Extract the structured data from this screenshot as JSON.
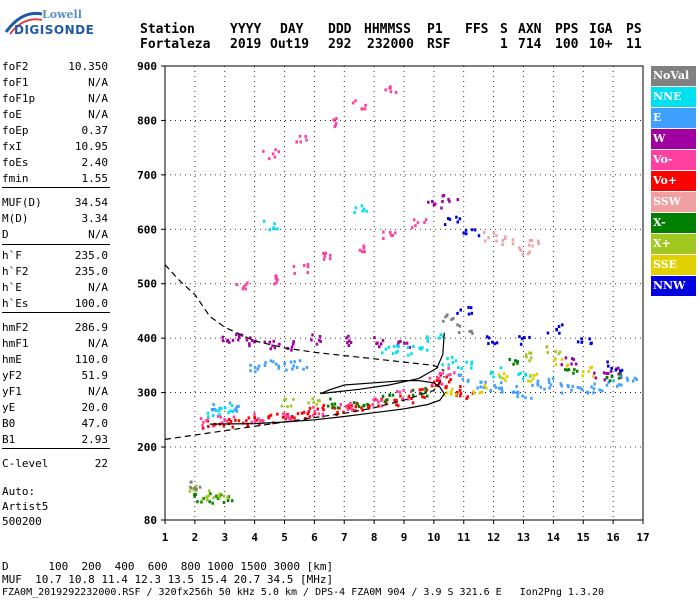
{
  "logo": {
    "top": "Lowell",
    "bottom": "DIGISONDE"
  },
  "header": {
    "labels": [
      "Station",
      "YYYY",
      "DAY",
      "DDD",
      "HHMMSS",
      "P1",
      "FFS",
      "S",
      "AXN",
      "PPS",
      "IGA",
      "PS"
    ],
    "values": [
      "Fortaleza",
      "2019",
      "Out19",
      "292",
      "232000",
      "RSF",
      "1",
      "714",
      "100",
      "10+",
      "11"
    ]
  },
  "params": [
    {
      "k": "foF2",
      "v": "10.350"
    },
    {
      "k": "foF1",
      "v": "N/A"
    },
    {
      "k": "foF1p",
      "v": "N/A"
    },
    {
      "k": "foE",
      "v": "N/A"
    },
    {
      "k": "foEp",
      "v": "0.37"
    },
    {
      "k": "fxI",
      "v": "10.95"
    },
    {
      "k": "foEs",
      "v": "2.40"
    },
    {
      "k": "fmin",
      "v": "1.55"
    },
    {
      "k": "MUF(D)",
      "v": "34.54"
    },
    {
      "k": "M(D)",
      "v": "3.34"
    },
    {
      "k": "D",
      "v": "N/A"
    },
    {
      "k": "h`F",
      "v": "235.0"
    },
    {
      "k": "h`F2",
      "v": "235.0"
    },
    {
      "k": "h`E",
      "v": "N/A"
    },
    {
      "k": "h`Es",
      "v": "100.0"
    },
    {
      "k": "hmF2",
      "v": "286.9"
    },
    {
      "k": "hmF1",
      "v": "N/A"
    },
    {
      "k": "hmE",
      "v": "110.0"
    },
    {
      "k": "yF2",
      "v": "51.9"
    },
    {
      "k": "yF1",
      "v": "N/A"
    },
    {
      "k": "yE",
      "v": "20.0"
    },
    {
      "k": "B0",
      "v": "47.0"
    },
    {
      "k": "B1",
      "v": "2.93"
    },
    {
      "k": "C-level",
      "v": "22"
    }
  ],
  "auto": {
    "line1": "Auto:",
    "line2": "Artist5",
    "line3": "500200"
  },
  "legend": [
    {
      "label": "NoVal",
      "color": "#808080"
    },
    {
      "label": "NNE",
      "color": "#00e0f0"
    },
    {
      "label": "E",
      "color": "#40a0ff"
    },
    {
      "label": "W",
      "color": "#a000a0"
    },
    {
      "label": "Vo-",
      "color": "#ff40a0"
    },
    {
      "label": "Vo+",
      "color": "#ff0000"
    },
    {
      "label": "SSW",
      "color": "#f0a0a0"
    },
    {
      "label": "X-",
      "color": "#008000"
    },
    {
      "label": "X+",
      "color": "#a0c820"
    },
    {
      "label": "SSE",
      "color": "#e0d000"
    },
    {
      "label": "NNW",
      "color": "#0000e0"
    }
  ],
  "footer": {
    "line1": "D      100  200  400  600  800 1000 1500 3000 [km]",
    "line2": "MUF  10.7 10.8 11.4 12.3 13.5 15.4 20.7 34.5 [MHz]",
    "line3": "FZA0M_2019292232000.RSF / 320fx256h 50 kHz 5.0 km / DPS-4 FZA0M 904 / 3.9 S 321.6 E   Ion2Png 1.3.20"
  },
  "chart_data": {
    "type": "scatter",
    "xlabel": "",
    "ylabel": "",
    "xlim": [
      1,
      17
    ],
    "ylim": [
      80,
      900
    ],
    "xticks": [
      1,
      2,
      3,
      4,
      5,
      6,
      7,
      8,
      9,
      10,
      11,
      12,
      13,
      14,
      15,
      16,
      17
    ],
    "yticks": [
      80,
      200,
      300,
      400,
      500,
      600,
      700,
      800,
      900
    ],
    "series": [
      {
        "name": "Vo+",
        "color": "#ff0000",
        "points": [
          [
            2.5,
            245
          ],
          [
            3.0,
            245
          ],
          [
            3.5,
            248
          ],
          [
            4.0,
            252
          ],
          [
            4.5,
            255
          ],
          [
            5.0,
            258
          ],
          [
            5.5,
            262
          ],
          [
            6.0,
            266
          ],
          [
            6.5,
            270
          ],
          [
            7.0,
            274
          ],
          [
            7.5,
            278
          ],
          [
            8.0,
            282
          ],
          [
            8.5,
            287
          ],
          [
            9.0,
            293
          ],
          [
            9.5,
            302
          ],
          [
            10.0,
            316
          ],
          [
            10.3,
            330
          ],
          [
            10.6,
            305
          ],
          [
            11.0,
            300
          ]
        ]
      },
      {
        "name": "Vo-",
        "color": "#ff40a0",
        "points": [
          [
            2.4,
            250
          ],
          [
            3.0,
            250
          ],
          [
            4.0,
            256
          ],
          [
            5.0,
            262
          ],
          [
            6.0,
            268
          ],
          [
            7.0,
            276
          ],
          [
            8.0,
            284
          ],
          [
            9.0,
            298
          ],
          [
            10.0,
            322
          ],
          [
            10.4,
            340
          ],
          [
            3.5,
            496
          ],
          [
            4.5,
            510
          ],
          [
            5.5,
            530
          ],
          [
            6.5,
            550
          ],
          [
            7.5,
            570
          ],
          [
            8.5,
            590
          ],
          [
            9.5,
            612
          ],
          [
            4.5,
            740
          ],
          [
            5.5,
            770
          ],
          [
            6.5,
            800
          ],
          [
            7.5,
            830
          ],
          [
            8.5,
            860
          ]
        ]
      },
      {
        "name": "W",
        "color": "#a000a0",
        "points": [
          [
            3.0,
            400
          ],
          [
            3.5,
            402
          ],
          [
            4.0,
            395
          ],
          [
            4.5,
            390
          ],
          [
            5.0,
            388
          ],
          [
            6.0,
            400
          ],
          [
            7.0,
            398
          ],
          [
            8.0,
            395
          ],
          [
            9.0,
            392
          ],
          [
            10.0,
            650
          ],
          [
            10.5,
            660
          ],
          [
            14.5,
            360
          ],
          [
            15.5,
            330
          ],
          [
            16.0,
            340
          ]
        ]
      },
      {
        "name": "E",
        "color": "#40a0ff",
        "points": [
          [
            4.0,
            350
          ],
          [
            4.5,
            352
          ],
          [
            5.0,
            350
          ],
          [
            5.5,
            352
          ],
          [
            11.0,
            330
          ],
          [
            11.5,
            320
          ],
          [
            12.0,
            315
          ],
          [
            12.5,
            305
          ],
          [
            13.0,
            300
          ],
          [
            13.5,
            315
          ],
          [
            14.0,
            320
          ],
          [
            14.5,
            310
          ],
          [
            15.0,
            305
          ],
          [
            15.5,
            310
          ],
          [
            16.0,
            320
          ],
          [
            16.5,
            330
          ],
          [
            2.8,
            272
          ],
          [
            3.2,
            275
          ]
        ]
      },
      {
        "name": "NNE",
        "color": "#00e0f0",
        "points": [
          [
            9.0,
            380
          ],
          [
            9.5,
            385
          ],
          [
            10.0,
            400
          ],
          [
            10.5,
            360
          ],
          [
            11.0,
            350
          ],
          [
            12.0,
            340
          ],
          [
            13.0,
            330
          ],
          [
            3.0,
            272
          ],
          [
            2.6,
            265
          ],
          [
            4.5,
            610
          ],
          [
            7.5,
            640
          ],
          [
            8.5,
            380
          ]
        ]
      },
      {
        "name": "X-",
        "color": "#008000",
        "points": [
          [
            2.2,
            120
          ],
          [
            2.6,
            118
          ],
          [
            3.0,
            118
          ],
          [
            6.5,
            282
          ],
          [
            7.5,
            285
          ],
          [
            8.5,
            290
          ],
          [
            9.5,
            305
          ],
          [
            12.5,
            355
          ],
          [
            14.5,
            345
          ],
          [
            16.0,
            330
          ]
        ]
      },
      {
        "name": "X+",
        "color": "#a0c820",
        "points": [
          [
            2.0,
            135
          ],
          [
            2.4,
            122
          ],
          [
            2.8,
            118
          ],
          [
            5.0,
            285
          ],
          [
            6.0,
            290
          ],
          [
            13.0,
            370
          ],
          [
            14.0,
            380
          ]
        ]
      },
      {
        "name": "SSE",
        "color": "#e0d000",
        "points": [
          [
            10.5,
            300
          ],
          [
            11.5,
            310
          ],
          [
            12.2,
            330
          ],
          [
            13.2,
            330
          ],
          [
            14.2,
            360
          ],
          [
            15.2,
            340
          ]
        ]
      },
      {
        "name": "NNW",
        "color": "#0000e0",
        "points": [
          [
            10.6,
            620
          ],
          [
            11.2,
            600
          ],
          [
            11.0,
            450
          ],
          [
            12.0,
            400
          ],
          [
            13.0,
            400
          ],
          [
            14.0,
            420
          ],
          [
            15.0,
            400
          ],
          [
            16.0,
            350
          ]
        ]
      },
      {
        "name": "SSW",
        "color": "#f0a0a0",
        "points": [
          [
            11.8,
            590
          ],
          [
            12.5,
            580
          ],
          [
            13.0,
            560
          ],
          [
            13.4,
            575
          ]
        ]
      },
      {
        "name": "NoVal",
        "color": "#808080",
        "points": [
          [
            2.0,
            140
          ],
          [
            10.5,
            440
          ],
          [
            11.0,
            420
          ]
        ]
      }
    ],
    "profile_solid": [
      [
        2.5,
        242
      ],
      [
        4.0,
        243
      ],
      [
        5.0,
        246
      ],
      [
        6.0,
        250
      ],
      [
        7.0,
        256
      ],
      [
        8.0,
        263
      ],
      [
        9.0,
        270
      ],
      [
        9.8,
        278
      ],
      [
        10.2,
        286
      ],
      [
        10.35,
        298
      ],
      [
        10.2,
        310
      ],
      [
        10.0,
        318
      ],
      [
        9.5,
        322
      ],
      [
        9.0,
        322
      ],
      [
        8.0,
        318
      ],
      [
        7.0,
        314
      ],
      [
        6.5,
        305
      ],
      [
        6.2,
        298
      ],
      [
        6.5,
        300
      ],
      [
        7.5,
        306
      ],
      [
        8.5,
        314
      ],
      [
        9.5,
        326
      ],
      [
        10.1,
        345
      ],
      [
        10.3,
        370
      ],
      [
        10.35,
        410
      ]
    ],
    "profile_dashed": [
      [
        1.0,
        535
      ],
      [
        1.5,
        505
      ],
      [
        2.0,
        480
      ],
      [
        2.5,
        440
      ],
      [
        3.0,
        420
      ],
      [
        4.0,
        395
      ],
      [
        5.0,
        382
      ],
      [
        6.0,
        374
      ],
      [
        7.0,
        368
      ],
      [
        8.0,
        362
      ],
      [
        9.0,
        356
      ],
      [
        10.0,
        350
      ],
      [
        10.35,
        340
      ]
    ],
    "profile_dashed_lower": [
      [
        1.0,
        214
      ],
      [
        2.0,
        222
      ],
      [
        3.0,
        230
      ],
      [
        4.0,
        238
      ],
      [
        5.0,
        246
      ],
      [
        6.0,
        254
      ],
      [
        7.0,
        262
      ],
      [
        8.0,
        272
      ],
      [
        9.0,
        286
      ],
      [
        10.0,
        304
      ],
      [
        10.35,
        330
      ]
    ]
  }
}
